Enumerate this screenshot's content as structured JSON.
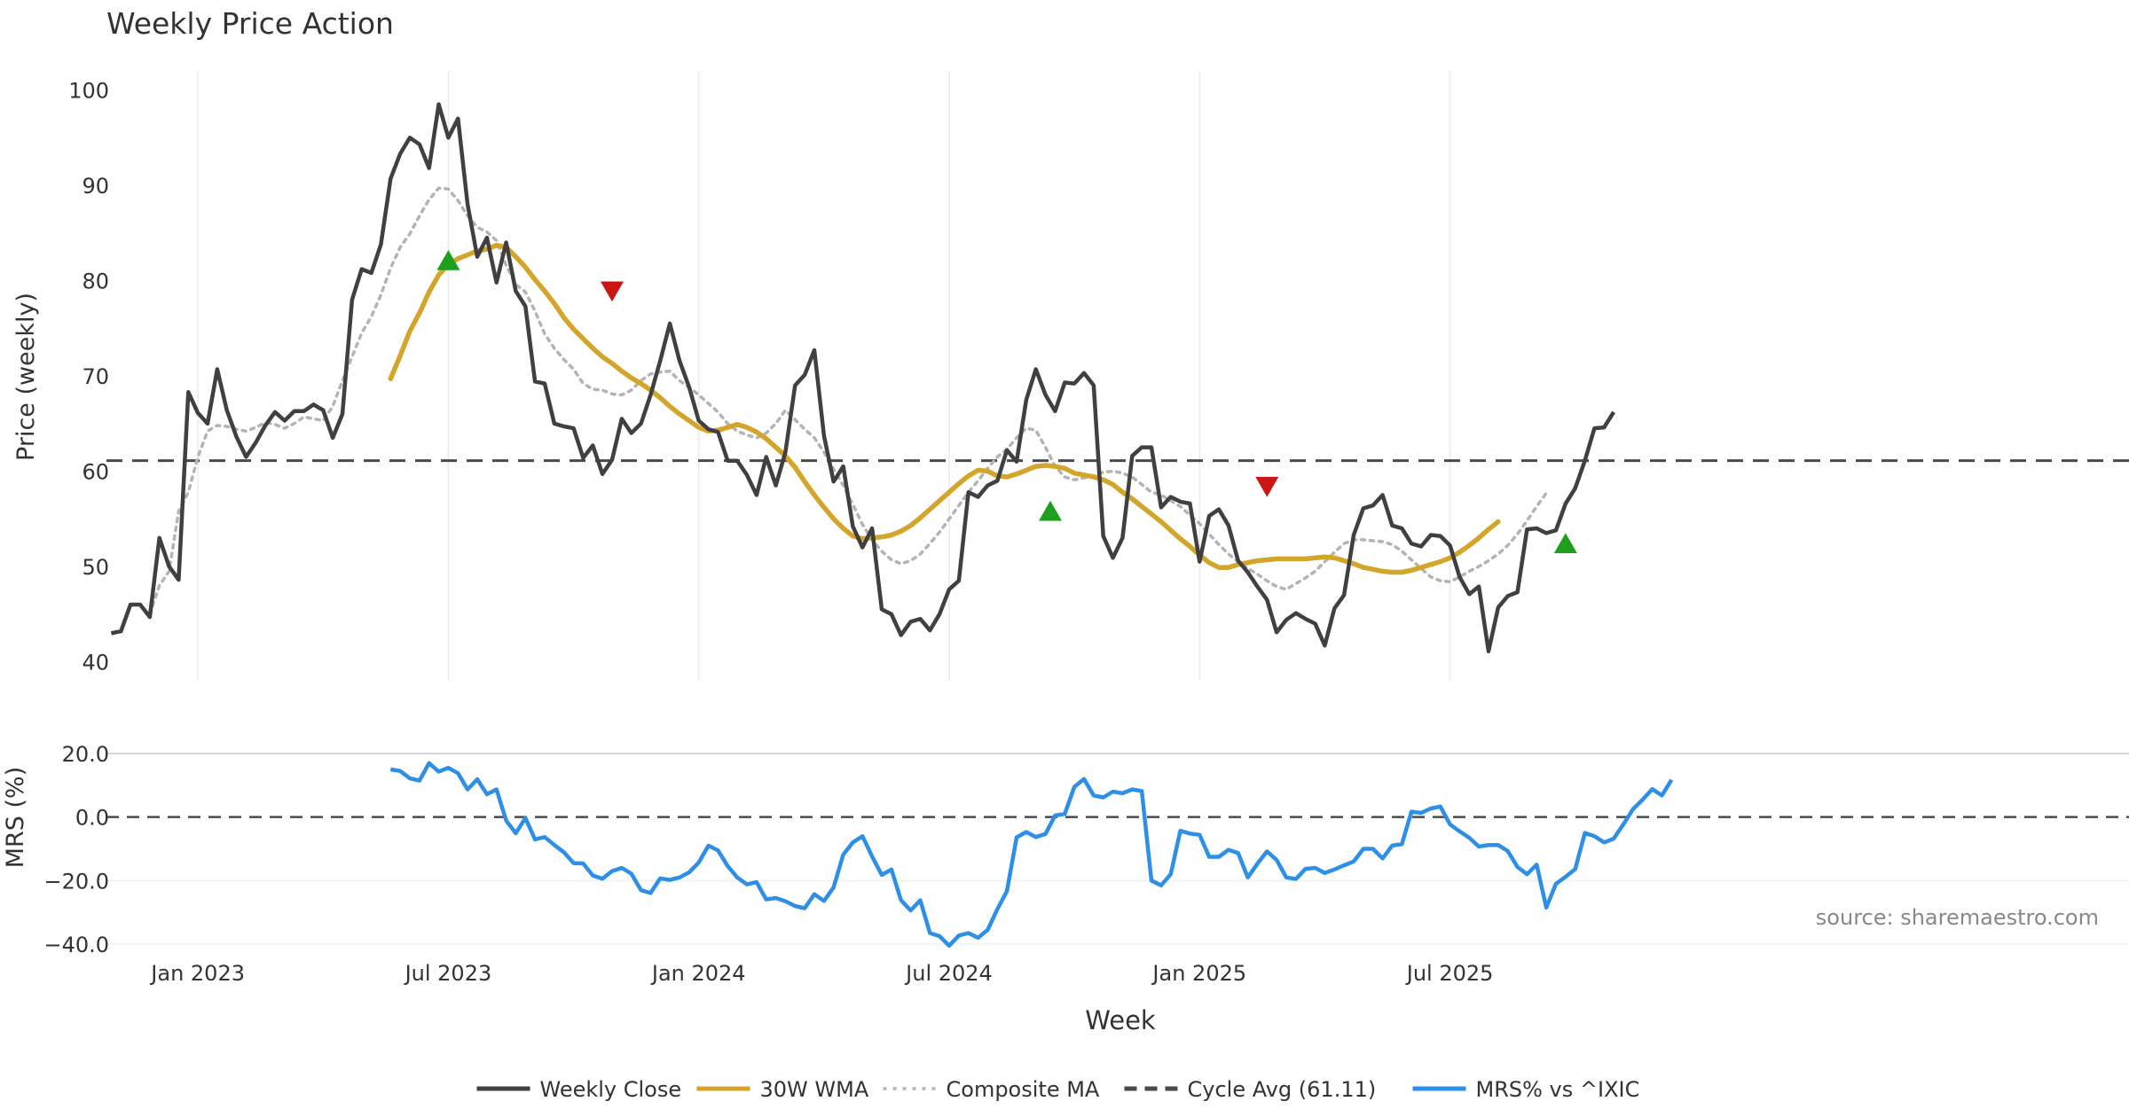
{
  "chart_data": [
    {
      "type": "line",
      "title": "Weekly Price Action",
      "ylabel": "Price (weekly)",
      "xlabel": "Week",
      "ylim": [
        38,
        102
      ],
      "yticks": [
        40,
        50,
        60,
        70,
        80,
        90,
        100
      ],
      "xlim": [
        0,
        210
      ],
      "x_ticks": [
        {
          "label": "Jan 2023",
          "week": 9.5
        },
        {
          "label": "Jul 2023",
          "week": 35.5
        },
        {
          "label": "Jan 2024",
          "week": 61.5
        },
        {
          "label": "Jul 2024",
          "week": 87.5
        },
        {
          "label": "Jan 2025",
          "week": 113.5
        },
        {
          "label": "Jul 2025",
          "week": 139.5
        }
      ],
      "series": [
        {
          "name": "Weekly Close",
          "color": "#404040",
          "start_week": 0.5,
          "values": [
            43,
            43.2,
            46,
            46,
            44.7,
            53,
            50,
            48.6,
            68.3,
            66.1,
            65,
            70.7,
            66.4,
            63.6,
            61.5,
            63,
            64.8,
            66.2,
            65.3,
            66.3,
            66.3,
            67,
            66.4,
            63.5,
            66,
            78,
            81.2,
            80.8,
            83.8,
            90.7,
            93.3,
            95,
            94.3,
            91.8,
            98.5,
            95,
            97,
            88,
            82.5,
            84.5,
            79.8,
            84,
            78.9,
            77.3,
            69.4,
            69.2,
            65,
            64.7,
            64.5,
            61.4,
            62.7,
            59.7,
            61.2,
            65.5,
            64,
            65,
            68,
            71.6,
            75.5,
            71.6,
            68.8,
            65.3,
            64.4,
            64.1,
            61.1,
            61.1,
            59.6,
            57.5,
            61.5,
            58.5,
            62,
            69,
            70.1,
            72.7,
            63.7,
            58.9,
            60.5,
            54.2,
            52,
            54,
            45.5,
            45,
            42.8,
            44.2,
            44.5,
            43.3,
            45,
            47.6,
            48.5,
            57.8,
            57.3,
            58.5,
            59,
            62.2,
            61,
            67.5,
            70.7,
            68,
            66.3,
            69.3,
            69.2,
            70.3,
            69,
            53.2,
            50.9,
            53,
            61.6,
            62.5,
            62.5,
            56.2,
            57.3,
            56.8,
            56.6,
            50.5,
            55.3,
            56,
            54.3,
            50.6,
            49.4,
            47.9,
            46.5,
            43.1,
            44.4,
            45.1,
            44.5,
            44,
            41.7,
            45.6,
            47,
            53.3,
            56.1,
            56.4,
            57.5,
            54.3,
            54,
            52.4,
            52.1,
            53.3,
            53.2,
            52.2,
            48.9,
            47.1,
            47.9,
            41.1,
            45.7,
            46.9,
            47.3,
            53.9,
            54,
            53.5,
            53.8,
            56.6,
            58.2,
            61.1,
            64.5,
            64.6,
            66.2
          ]
        },
        {
          "name": "30W WMA",
          "color": "#d4a52b",
          "start_week": 29.5,
          "values": [
            69.7,
            72.1,
            74.7,
            76.6,
            78.8,
            80.6,
            81.7,
            82.3,
            82.7,
            83.1,
            83.3,
            83.7,
            83.5,
            82.5,
            81.4,
            80.1,
            78.9,
            77.6,
            76.1,
            74.9,
            73.9,
            72.9,
            72.0,
            71.3,
            70.5,
            69.8,
            69.2,
            68.5,
            67.7,
            66.8,
            66.0,
            65.3,
            64.6,
            64.2,
            64.3,
            64.6,
            64.9,
            64.6,
            64.1,
            63.4,
            62.5,
            61.6,
            60.4,
            58.9,
            57.5,
            56.2,
            55.0,
            54.0,
            53.2,
            52.9,
            53.0,
            53.1,
            53.3,
            53.7,
            54.3,
            55.1,
            56.0,
            56.9,
            57.8,
            58.7,
            59.5,
            60.1,
            60.0,
            59.5,
            59.4,
            59.7,
            60.1,
            60.5,
            60.6,
            60.5,
            60.3,
            59.8,
            59.6,
            59.4,
            59.1,
            58.6,
            57.8,
            57.1,
            56.3,
            55.5,
            54.7,
            53.8,
            52.9,
            52.1,
            51.2,
            50.4,
            49.9,
            49.9,
            50.2,
            50.4,
            50.6,
            50.7,
            50.8,
            50.8,
            50.8,
            50.8,
            50.9,
            51.0,
            50.9,
            50.6,
            50.3,
            49.9,
            49.7,
            49.5,
            49.4,
            49.4,
            49.6,
            49.9,
            50.2,
            50.5,
            50.9,
            51.5,
            52.2,
            53.0,
            53.9,
            54.7
          ]
        },
        {
          "name": "Composite MA",
          "color": "#b4b4b4",
          "start_week": 4.5,
          "values": [
            45,
            48,
            49.5,
            55.8,
            57.8,
            61.5,
            64.2,
            64.8,
            64.7,
            64.4,
            64.2,
            64.6,
            65.1,
            64.9,
            64.5,
            65,
            65.7,
            65.5,
            65.3,
            66.8,
            69.5,
            72,
            74.5,
            76.2,
            78.5,
            81.3,
            83.5,
            84.9,
            86.8,
            88.5,
            89.7,
            89.6,
            88.4,
            86.8,
            85.6,
            85.1,
            84.2,
            81.6,
            79.6,
            78.8,
            76.8,
            74.4,
            72.9,
            71.7,
            70.7,
            69.2,
            68.6,
            68.5,
            68.1,
            68,
            68.5,
            69.5,
            70.2,
            70.4,
            70.5,
            69.5,
            68.8,
            68,
            67.1,
            66.2,
            65,
            64.2,
            63.8,
            63.5,
            64,
            65,
            66.4,
            65.4,
            64.4,
            63.5,
            62,
            60.2,
            58.5,
            56.5,
            54.4,
            52.8,
            51.6,
            50.7,
            50.3,
            50.6,
            51.3,
            52.4,
            53.6,
            55,
            56.4,
            57.8,
            59,
            60.3,
            61.5,
            62.3,
            63.5,
            64.5,
            64.3,
            62.5,
            60.5,
            59.4,
            59.1,
            59.3,
            59.5,
            59.9,
            60,
            59.8,
            59.4,
            58.6,
            57.8,
            57.5,
            56.9,
            56.3,
            55.4,
            54.5,
            53.4,
            52.3,
            51.3,
            50.5,
            49.8,
            49.2,
            48.5,
            47.9,
            47.6,
            48.2,
            48.8,
            49.5,
            50.5,
            51.5,
            52.4,
            52.8,
            52.8,
            52.7,
            52.6,
            52.3,
            51.6,
            50.7,
            49.8,
            48.9,
            48.5,
            48.4,
            48.9,
            49.5,
            50,
            50.6,
            51.3,
            52.2,
            53.4,
            54.8,
            56.3,
            57.7
          ]
        },
        {
          "name": "Cycle Avg (61.11)",
          "color": "#4a4a4a",
          "constant": 61.11
        }
      ],
      "markers": [
        {
          "type": "buy",
          "week": 35.5,
          "value": 82
        },
        {
          "type": "sell",
          "week": 52.5,
          "value": 79
        },
        {
          "type": "buy",
          "week": 98,
          "value": 55.7
        },
        {
          "type": "sell",
          "week": 120.5,
          "value": 58.5
        },
        {
          "type": "buy",
          "week": 151.5,
          "value": 52.3
        }
      ],
      "marker_colors": {
        "buy": "#1ea01e",
        "sell": "#cc1616"
      }
    },
    {
      "type": "line",
      "ylabel": "MRS (%)",
      "ylim": [
        -40,
        20
      ],
      "yticks": [
        -40,
        -20,
        0,
        20
      ],
      "ytick_labels": [
        "−40.0",
        "−20.0",
        "0.0",
        "20.0"
      ],
      "zero_line": 0,
      "xlim": [
        0,
        210
      ],
      "series": [
        {
          "name": "MRS% vs ^IXIC",
          "color": "#2e8fe6",
          "start_week": 29.5,
          "values": [
            15,
            14.5,
            12.2,
            11.5,
            17,
            14.3,
            15.5,
            13.8,
            8.7,
            11.9,
            7.2,
            8.7,
            -1.1,
            -5.1,
            -0.3,
            -7,
            -6.3,
            -8.8,
            -11.1,
            -14.5,
            -14.6,
            -18.4,
            -19.4,
            -17,
            -16,
            -17.8,
            -23,
            -23.9,
            -19.3,
            -19.8,
            -19,
            -17.4,
            -14.3,
            -9,
            -10.5,
            -15.4,
            -19,
            -21.2,
            -20.5,
            -25.9,
            -25.5,
            -26.5,
            -28,
            -28.7,
            -24.3,
            -26.4,
            -22.1,
            -11.8,
            -8,
            -6,
            -12.4,
            -18.2,
            -16.5,
            -26.2,
            -29.4,
            -26.2,
            -36.5,
            -37.5,
            -40.5,
            -37.3,
            -36.5,
            -38,
            -35.5,
            -29,
            -23.3,
            -6.4,
            -4.7,
            -6.3,
            -5.3,
            0.5,
            1,
            9.5,
            12,
            6.8,
            6.2,
            8,
            7.5,
            8.7,
            8.2,
            -20,
            -21.5,
            -18,
            -4.3,
            -5.2,
            -5.6,
            -12.5,
            -12.5,
            -10.3,
            -11.3,
            -19,
            -14.7,
            -10.8,
            -13.5,
            -19,
            -19.5,
            -16.3,
            -16,
            -17.6,
            -16.5,
            -15.2,
            -14,
            -10,
            -10,
            -13,
            -9,
            -8.5,
            1.7,
            1.3,
            2.7,
            3.3,
            -2.3,
            -4.5,
            -6.5,
            -9.3,
            -8.8,
            -8.8,
            -10.7,
            -15.7,
            -18,
            -15,
            -28.5,
            -21,
            -18.8,
            -16.4,
            -5,
            -6,
            -8,
            -6.8,
            -2.3,
            2.5,
            5.5,
            8.8,
            6.8,
            11.7
          ]
        }
      ],
      "annotation": "source: sharemaestro.com"
    }
  ],
  "legend": [
    {
      "label": "Weekly Close",
      "style": "solid",
      "color": "#404040"
    },
    {
      "label": "30W WMA",
      "style": "solid",
      "color": "#d4a52b"
    },
    {
      "label": "Composite MA",
      "style": "dotted",
      "color": "#b4b4b4"
    },
    {
      "label": "Cycle Avg (61.11)",
      "style": "dashed",
      "color": "#4a4a4a"
    },
    {
      "label": "MRS% vs ^IXIC",
      "style": "solid",
      "color": "#2e8fe6"
    }
  ]
}
